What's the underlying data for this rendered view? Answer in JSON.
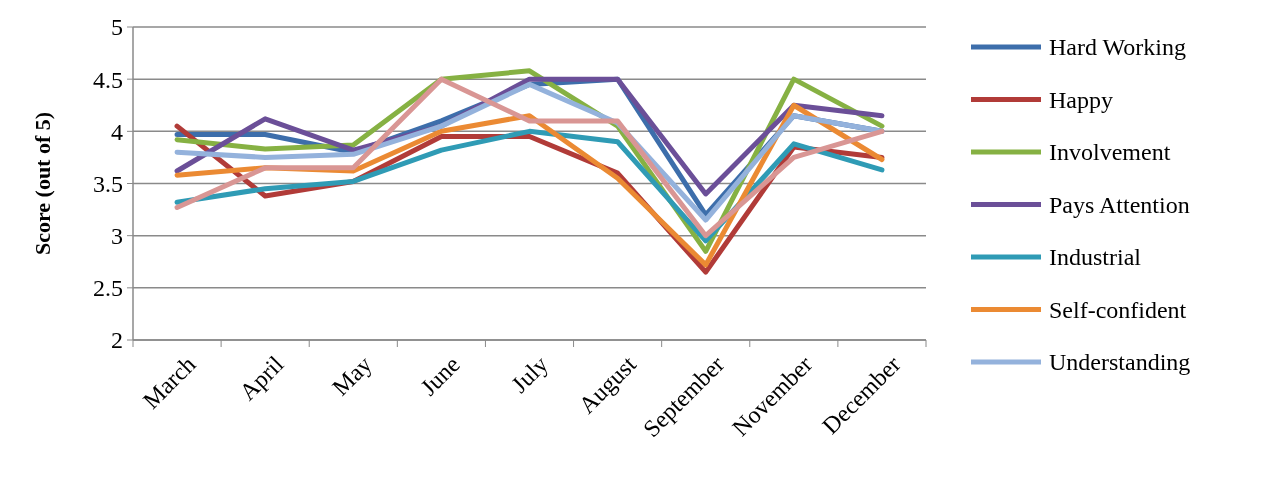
{
  "chart_data": {
    "type": "line",
    "ylabel": "Score (out of 5)",
    "categories": [
      "March",
      "April",
      "May",
      "June",
      "July",
      "August",
      "September",
      "November",
      "December"
    ],
    "ylim": [
      2,
      5
    ],
    "yticks": [
      2,
      2.5,
      3,
      3.5,
      4,
      4.5,
      5
    ],
    "grid": "y",
    "legend": "right",
    "series": [
      {
        "name": "Hard Working",
        "color": "#3d6eab",
        "values": [
          3.97,
          3.97,
          3.8,
          4.1,
          4.45,
          4.5,
          3.2,
          4.15,
          4.0
        ]
      },
      {
        "name": "Happy",
        "color": "#b13b38",
        "values": [
          4.05,
          3.38,
          3.52,
          3.95,
          3.95,
          3.6,
          2.65,
          3.85,
          3.75
        ]
      },
      {
        "name": "Involvement",
        "color": "#86b143",
        "values": [
          3.92,
          3.83,
          3.87,
          4.5,
          4.58,
          4.05,
          2.85,
          4.5,
          4.05
        ]
      },
      {
        "name": "Pays Attention",
        "color": "#6b4f98",
        "values": [
          3.62,
          4.12,
          3.82,
          4.05,
          4.5,
          4.5,
          3.4,
          4.25,
          4.15
        ]
      },
      {
        "name": "Industrial",
        "color": "#2f9bb5",
        "values": [
          3.32,
          3.45,
          3.52,
          3.82,
          4.0,
          3.9,
          2.95,
          3.88,
          3.63
        ]
      },
      {
        "name": "Self-confident",
        "color": "#eb8a33",
        "values": [
          3.58,
          3.65,
          3.62,
          4.0,
          4.15,
          3.55,
          2.72,
          4.25,
          3.73
        ]
      },
      {
        "name": "Understanding",
        "color": "#94b2dc",
        "values": [
          3.8,
          3.75,
          3.78,
          4.05,
          4.45,
          4.08,
          3.15,
          4.15,
          4.0
        ]
      },
      {
        "color": "#d99694",
        "values": [
          3.27,
          3.65,
          3.65,
          4.5,
          4.1,
          4.1,
          3.0,
          3.75,
          4.0
        ]
      }
    ]
  }
}
